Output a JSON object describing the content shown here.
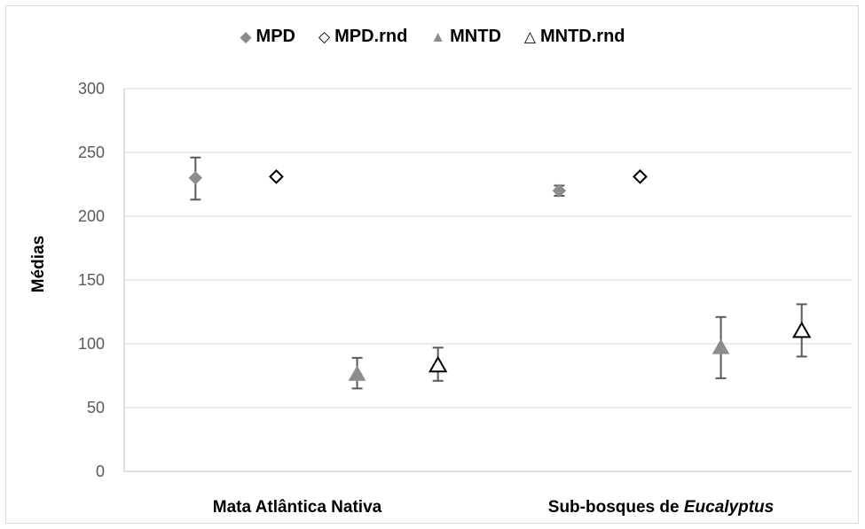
{
  "chart_data": {
    "type": "scatter",
    "title": "",
    "ylabel": "Médias",
    "xlabel": "",
    "ylim": [
      0,
      300
    ],
    "yticks": [
      0,
      50,
      100,
      150,
      200,
      250,
      300
    ],
    "grid": true,
    "legend_position": "top",
    "categories": [
      {
        "prefix": "Mata Atlântica Nativa",
        "italic": ""
      },
      {
        "prefix": "Sub-bosques de ",
        "italic": "Eucalyptus"
      }
    ],
    "series": [
      {
        "name": "MPD",
        "marker": "diamond-filled",
        "color": "#8c8c8c",
        "points": [
          {
            "value": 230,
            "err_low": 213,
            "err_high": 246
          },
          {
            "value": 220,
            "err_low": 216,
            "err_high": 224
          }
        ]
      },
      {
        "name": "MPD.rnd",
        "marker": "diamond-open",
        "color": "#000000",
        "points": [
          {
            "value": 231,
            "err_low": null,
            "err_high": null
          },
          {
            "value": 231,
            "err_low": null,
            "err_high": null
          }
        ]
      },
      {
        "name": "MNTD",
        "marker": "triangle-filled",
        "color": "#8c8c8c",
        "points": [
          {
            "value": 76,
            "err_low": 65,
            "err_high": 89
          },
          {
            "value": 97,
            "err_low": 73,
            "err_high": 121
          }
        ]
      },
      {
        "name": "MNTD.rnd",
        "marker": "triangle-open",
        "color": "#000000",
        "points": [
          {
            "value": 83,
            "err_low": 71,
            "err_high": 97
          },
          {
            "value": 110,
            "err_low": 90,
            "err_high": 131
          }
        ]
      }
    ],
    "colors": {
      "gridline": "#d9d9d9",
      "axis": "#bfbfbf",
      "errorbar": "#595959",
      "tick_text": "#595959"
    }
  }
}
